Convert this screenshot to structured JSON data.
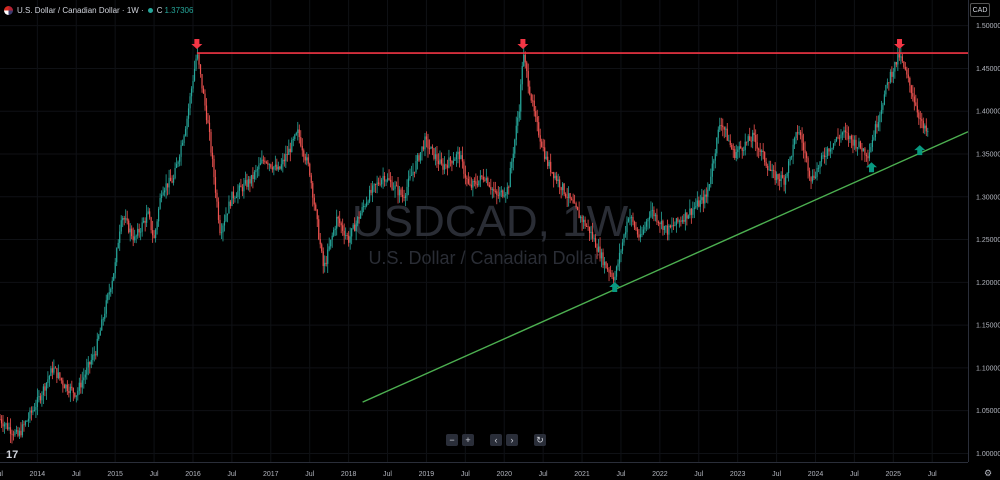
{
  "header": {
    "title": "U.S. Dollar / Canadian Dollar · 1W ·",
    "close_prefix": "C",
    "close_value": "1.37306"
  },
  "currency_label": "CAD",
  "watermark": {
    "symbol": "USDCAD, 1W",
    "description": "U.S. Dollar / Canadian Dollar"
  },
  "icons": {
    "zoom_out": "−",
    "zoom_in": "+",
    "prev": "‹",
    "next": "›",
    "reset": "↻",
    "logo": "17",
    "gear": "⚙"
  },
  "colors": {
    "up": "#26a69a",
    "down": "#ef5350",
    "resistance": "#f23645",
    "support": "#4caf50",
    "arrow_top": "#f23645",
    "arrow_bottom": "#089981"
  },
  "chart_data": {
    "type": "candlestick",
    "timeframe": "1W",
    "symbol": "USDCAD",
    "ylim": [
      0.99,
      1.53
    ],
    "y_ticks": [
      "1.00000",
      "1.05000",
      "1.10000",
      "1.15000",
      "1.20000",
      "1.25000",
      "1.30000",
      "1.35000",
      "1.40000",
      "1.45000",
      "1.50000"
    ],
    "x_tick_labels": [
      "Jul",
      "2014",
      "Jul",
      "2015",
      "Jul",
      "2016",
      "Jul",
      "2017",
      "Jul",
      "2018",
      "Jul",
      "2019",
      "Jul",
      "2020",
      "Jul",
      "2021",
      "Jul",
      "2022",
      "Jul",
      "2023",
      "Jul",
      "2024",
      "Jul",
      "2025",
      "Jul"
    ],
    "x_tick_years": [
      2013.5,
      2014,
      2014.5,
      2015,
      2015.5,
      2016,
      2016.5,
      2017,
      2017.5,
      2018,
      2018.5,
      2019,
      2019.5,
      2020,
      2020.5,
      2021,
      2021.5,
      2022,
      2022.5,
      2023,
      2023.5,
      2024,
      2024.5,
      2025,
      2025.5
    ],
    "xlim_years": [
      2013.52,
      2025.96
    ],
    "price_path": [
      [
        2013.52,
        1.04
      ],
      [
        2013.75,
        1.02
      ],
      [
        2014.0,
        1.06
      ],
      [
        2014.2,
        1.1
      ],
      [
        2014.35,
        1.08
      ],
      [
        2014.5,
        1.07
      ],
      [
        2014.75,
        1.12
      ],
      [
        2015.0,
        1.22
      ],
      [
        2015.08,
        1.28
      ],
      [
        2015.25,
        1.25
      ],
      [
        2015.42,
        1.28
      ],
      [
        2015.5,
        1.25
      ],
      [
        2015.6,
        1.31
      ],
      [
        2015.75,
        1.32
      ],
      [
        2015.92,
        1.39
      ],
      [
        2016.05,
        1.468
      ],
      [
        2016.2,
        1.38
      ],
      [
        2016.35,
        1.26
      ],
      [
        2016.5,
        1.3
      ],
      [
        2016.75,
        1.32
      ],
      [
        2016.92,
        1.345
      ],
      [
        2017.1,
        1.33
      ],
      [
        2017.35,
        1.375
      ],
      [
        2017.5,
        1.33
      ],
      [
        2017.68,
        1.215
      ],
      [
        2017.85,
        1.275
      ],
      [
        2018.0,
        1.25
      ],
      [
        2018.25,
        1.3
      ],
      [
        2018.45,
        1.325
      ],
      [
        2018.7,
        1.3
      ],
      [
        2018.98,
        1.365
      ],
      [
        2019.2,
        1.335
      ],
      [
        2019.42,
        1.35
      ],
      [
        2019.55,
        1.31
      ],
      [
        2019.75,
        1.325
      ],
      [
        2019.9,
        1.3
      ],
      [
        2020.05,
        1.31
      ],
      [
        2020.2,
        1.41
      ],
      [
        2020.24,
        1.468
      ],
      [
        2020.4,
        1.39
      ],
      [
        2020.55,
        1.34
      ],
      [
        2020.75,
        1.31
      ],
      [
        2020.95,
        1.28
      ],
      [
        2021.1,
        1.26
      ],
      [
        2021.3,
        1.22
      ],
      [
        2021.42,
        1.205
      ],
      [
        2021.6,
        1.28
      ],
      [
        2021.75,
        1.25
      ],
      [
        2021.88,
        1.285
      ],
      [
        2022.1,
        1.26
      ],
      [
        2022.35,
        1.28
      ],
      [
        2022.6,
        1.3
      ],
      [
        2022.78,
        1.39
      ],
      [
        2022.95,
        1.35
      ],
      [
        2023.2,
        1.37
      ],
      [
        2023.45,
        1.325
      ],
      [
        2023.6,
        1.32
      ],
      [
        2023.78,
        1.38
      ],
      [
        2023.95,
        1.32
      ],
      [
        2024.15,
        1.355
      ],
      [
        2024.35,
        1.375
      ],
      [
        2024.55,
        1.36
      ],
      [
        2024.68,
        1.35
      ],
      [
        2024.8,
        1.39
      ],
      [
        2024.95,
        1.44
      ],
      [
        2025.08,
        1.465
      ],
      [
        2025.25,
        1.42
      ],
      [
        2025.38,
        1.38
      ],
      [
        2025.46,
        1.373
      ]
    ],
    "resistance_line": {
      "price": 1.468,
      "x_start": 2016.05,
      "x_end": 2025.96
    },
    "support_line": {
      "start": [
        2018.18,
        1.06
      ],
      "end": [
        2025.96,
        1.376
      ]
    },
    "markers": [
      {
        "type": "down",
        "x": 2016.05,
        "price": 1.468
      },
      {
        "type": "down",
        "x": 2020.24,
        "price": 1.468
      },
      {
        "type": "down",
        "x": 2025.08,
        "price": 1.468
      },
      {
        "type": "up",
        "x": 2021.42,
        "price": 1.205
      },
      {
        "type": "up",
        "x": 2024.72,
        "price": 1.345
      },
      {
        "type": "up",
        "x": 2025.34,
        "price": 1.365
      }
    ]
  }
}
